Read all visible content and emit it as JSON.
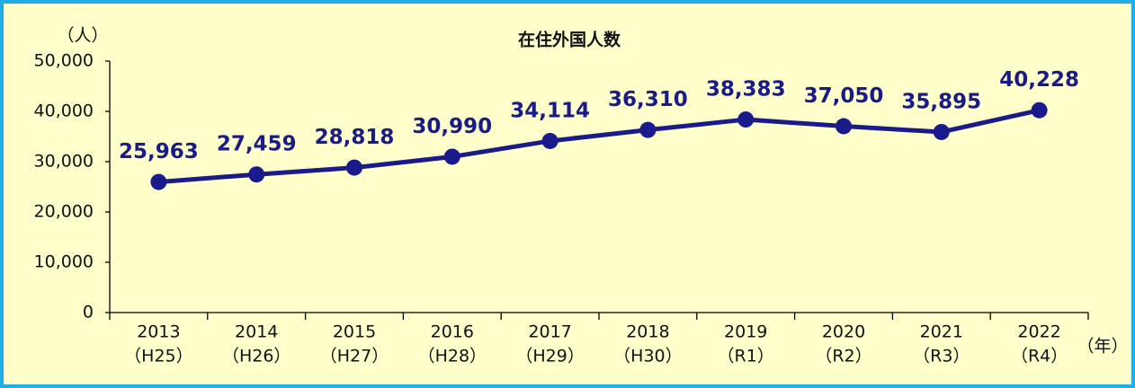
{
  "chart_data": {
    "type": "line",
    "title": "在住外国人数",
    "y_axis_label": "（人）",
    "x_axis_label": "（年）",
    "categories": [
      "2013",
      "2014",
      "2015",
      "2016",
      "2017",
      "2018",
      "2019",
      "2020",
      "2021",
      "2022"
    ],
    "era_labels": [
      "（H25）",
      "（H26）",
      "（H27）",
      "（H28）",
      "（H29）",
      "（H30）",
      "（R1）",
      "（R2）",
      "（R3）",
      "（R4）"
    ],
    "values": [
      25963,
      27459,
      28818,
      30990,
      34114,
      36310,
      38383,
      37050,
      35895,
      40228
    ],
    "value_labels": [
      "25,963",
      "27,459",
      "28,818",
      "30,990",
      "34,114",
      "36,310",
      "38,383",
      "37,050",
      "35,895",
      "40,228"
    ],
    "color": "#1a1a8c",
    "ylim": [
      0,
      50000
    ],
    "yticks": [
      0,
      {
        "value": 10000,
        "label": "10,000"
      },
      {
        "value": 20000,
        "label": "20,000"
      },
      {
        "value": 30000,
        "label": "30,000"
      },
      {
        "value": 40000,
        "label": "40,000"
      },
      {
        "value": 50000,
        "label": "50,000"
      }
    ],
    "grid": false
  }
}
